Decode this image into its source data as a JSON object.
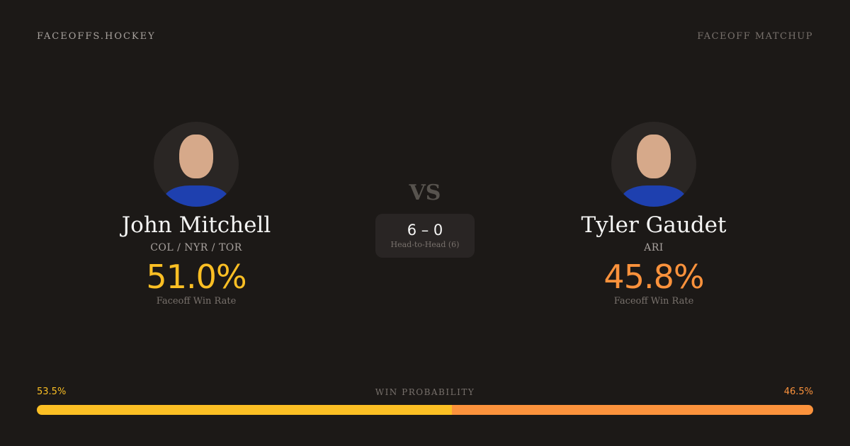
{
  "header": {
    "brand": "FACEOFFS.HOCKEY",
    "tag": "FACEOFF MATCHUP"
  },
  "players": [
    {
      "name": "John Mitchell",
      "teams": "COL / NYR / TOR",
      "win_rate": "51.0%",
      "win_rate_label": "Faceoff Win Rate",
      "color": "#fbbf24"
    },
    {
      "name": "Tyler Gaudet",
      "teams": "ARI",
      "win_rate": "45.8%",
      "win_rate_label": "Faceoff Win Rate",
      "color": "#fb923c"
    }
  ],
  "vs": "VS",
  "head_to_head": {
    "score": "6 – 0",
    "label": "Head-to-Head (6)"
  },
  "win_probability": {
    "title": "WIN PROBABILITY",
    "left": "53.5%",
    "right": "46.5%",
    "left_value": 53.5,
    "right_value": 46.5,
    "left_color": "#fbbf24",
    "right_color": "#fb923c"
  }
}
